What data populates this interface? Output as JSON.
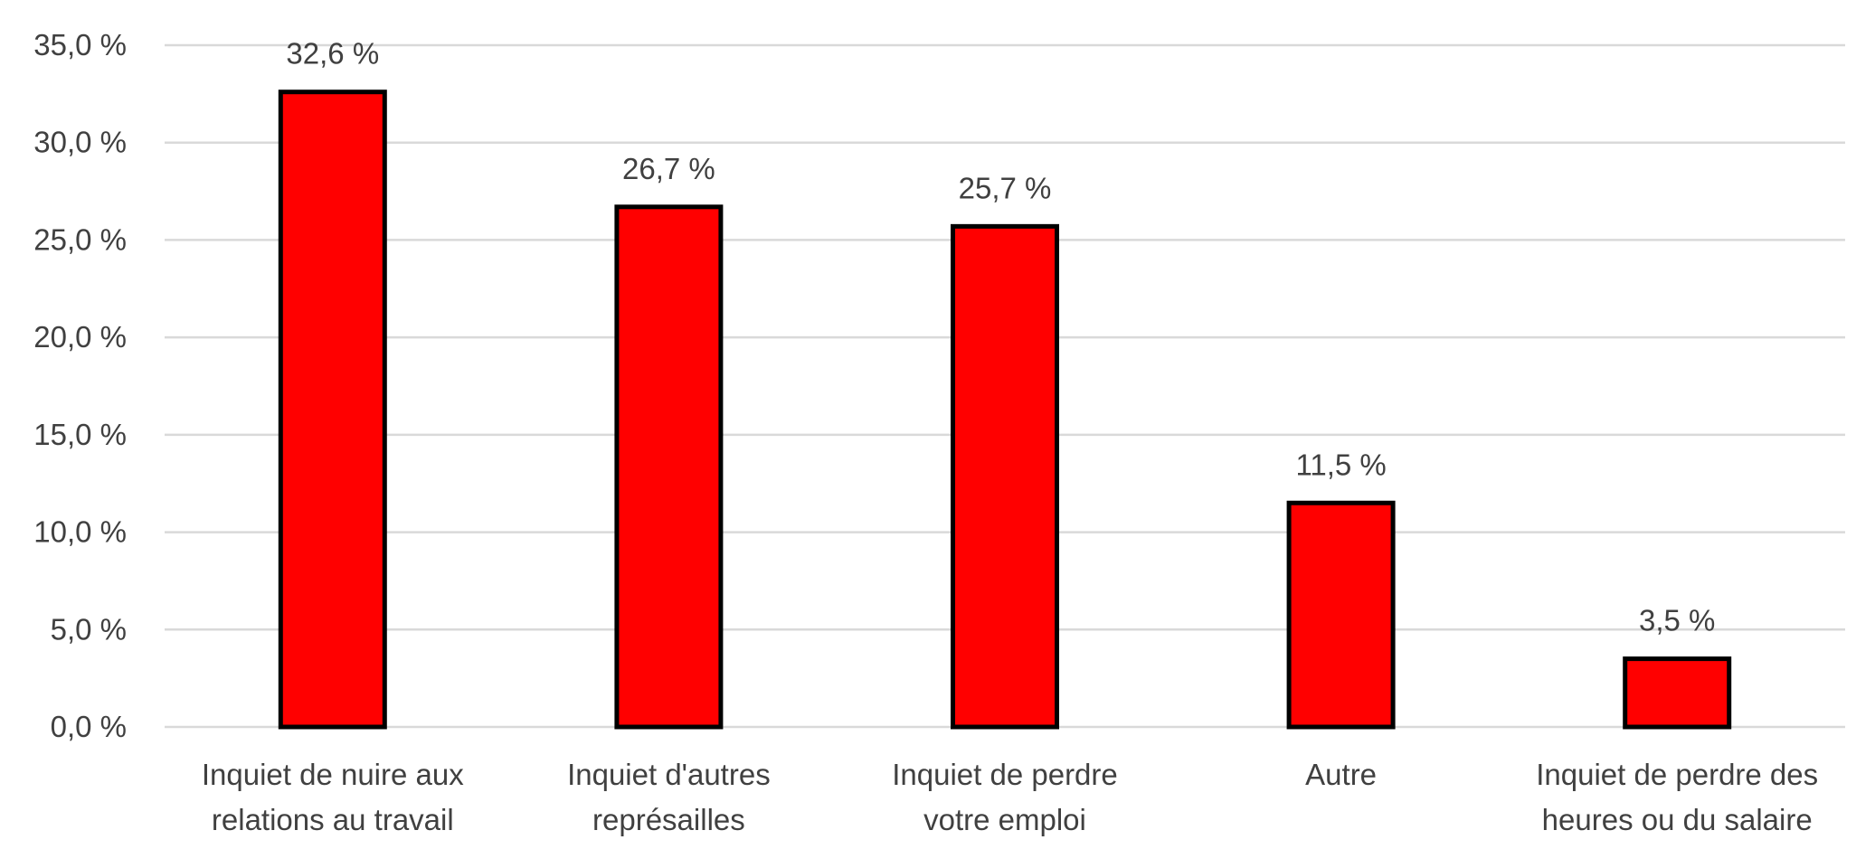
{
  "chart_data": {
    "type": "bar",
    "categories": [
      [
        "Inquiet de nuire aux",
        "relations au travail"
      ],
      [
        "Inquiet d'autres",
        "représailles"
      ],
      [
        "Inquiet de perdre",
        "votre emploi"
      ],
      [
        "Autre"
      ],
      [
        "Inquiet de perdre des",
        "heures ou du salaire"
      ]
    ],
    "values": [
      32.6,
      26.7,
      25.7,
      11.5,
      3.5
    ],
    "data_labels": [
      "32,6 %",
      "26,7 %",
      "25,7 %",
      "11,5 %",
      "3,5 %"
    ],
    "y_ticks": [
      0,
      5,
      10,
      15,
      20,
      25,
      30,
      35
    ],
    "y_tick_labels": [
      "0,0 %",
      "5,0 %",
      "10,0 %",
      "15,0 %",
      "20,0 %",
      "25,0 %",
      "30,0 %",
      "35,0 %"
    ],
    "ylim": [
      0,
      35
    ],
    "title": "",
    "xlabel": "",
    "ylabel": "",
    "grid": true,
    "legend": "none",
    "colors": {
      "bar_fill": "#ff0000",
      "bar_stroke": "#000000",
      "grid": "#d9d9d9",
      "text": "#404040"
    }
  }
}
